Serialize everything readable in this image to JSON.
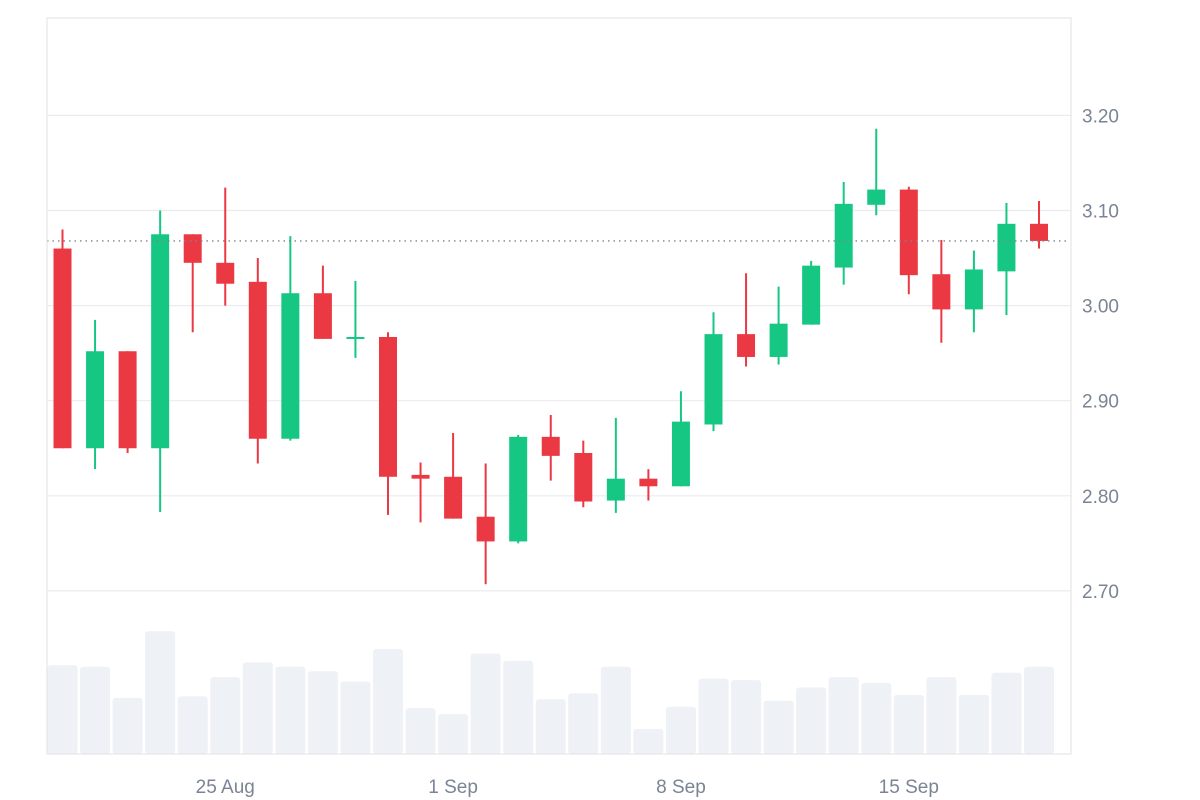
{
  "chart_data": {
    "type": "candlestick",
    "title": "",
    "xlabel": "",
    "ylabel": "",
    "ylim": [
      2.6,
      3.3
    ],
    "y_ticks": [
      "2.70",
      "2.80",
      "2.90",
      "3.00",
      "3.10",
      "3.20"
    ],
    "x_ticks": [
      {
        "label": "25 Aug",
        "date": "2025-08-25"
      },
      {
        "label": "1 Sep",
        "date": "2025-09-01"
      },
      {
        "label": "8 Sep",
        "date": "2025-09-08"
      },
      {
        "label": "15 Sep",
        "date": "2025-09-15"
      }
    ],
    "current_price": 3.068,
    "grid": true,
    "colors": {
      "up": "#16c784",
      "down": "#ea3943",
      "volume": "#eef1f5",
      "grid": "#e9ecf0",
      "tick_text": "#7b8494",
      "price_line": "#7b8494"
    },
    "candles": [
      {
        "date": "2025-08-20",
        "open": 3.06,
        "high": 3.08,
        "low": 2.85,
        "close": 2.85,
        "volume": 0.6
      },
      {
        "date": "2025-08-21",
        "open": 2.85,
        "high": 2.985,
        "low": 2.828,
        "close": 2.952,
        "volume": 0.59
      },
      {
        "date": "2025-08-22",
        "open": 2.952,
        "high": 2.952,
        "low": 2.845,
        "close": 2.85,
        "volume": 0.38
      },
      {
        "date": "2025-08-23",
        "open": 2.85,
        "high": 3.1,
        "low": 2.783,
        "close": 3.075,
        "volume": 0.83
      },
      {
        "date": "2025-08-24",
        "open": 3.075,
        "high": 3.075,
        "low": 2.972,
        "close": 3.045,
        "volume": 0.39
      },
      {
        "date": "2025-08-25",
        "open": 3.045,
        "high": 3.124,
        "low": 3.0,
        "close": 3.023,
        "volume": 0.52
      },
      {
        "date": "2025-08-26",
        "open": 3.025,
        "high": 3.05,
        "low": 2.834,
        "close": 2.86,
        "volume": 0.62
      },
      {
        "date": "2025-08-27",
        "open": 2.86,
        "high": 3.073,
        "low": 2.858,
        "close": 3.013,
        "volume": 0.59
      },
      {
        "date": "2025-08-28",
        "open": 3.013,
        "high": 3.042,
        "low": 2.965,
        "close": 2.965,
        "volume": 0.56
      },
      {
        "date": "2025-08-29",
        "open": 2.965,
        "high": 3.026,
        "low": 2.945,
        "close": 2.967,
        "volume": 0.49
      },
      {
        "date": "2025-08-30",
        "open": 2.967,
        "high": 2.972,
        "low": 2.78,
        "close": 2.82,
        "volume": 0.71
      },
      {
        "date": "2025-08-31",
        "open": 2.822,
        "high": 2.835,
        "low": 2.772,
        "close": 2.818,
        "volume": 0.31
      },
      {
        "date": "2025-09-01",
        "open": 2.82,
        "high": 2.866,
        "low": 2.776,
        "close": 2.776,
        "volume": 0.27
      },
      {
        "date": "2025-09-02",
        "open": 2.778,
        "high": 2.834,
        "low": 2.707,
        "close": 2.752,
        "volume": 0.68
      },
      {
        "date": "2025-09-03",
        "open": 2.752,
        "high": 2.864,
        "low": 2.75,
        "close": 2.862,
        "volume": 0.63
      },
      {
        "date": "2025-09-04",
        "open": 2.862,
        "high": 2.885,
        "low": 2.816,
        "close": 2.842,
        "volume": 0.37
      },
      {
        "date": "2025-09-05",
        "open": 2.845,
        "high": 2.858,
        "low": 2.788,
        "close": 2.794,
        "volume": 0.41
      },
      {
        "date": "2025-09-06",
        "open": 2.795,
        "high": 2.882,
        "low": 2.782,
        "close": 2.818,
        "volume": 0.59
      },
      {
        "date": "2025-09-07",
        "open": 2.818,
        "high": 2.828,
        "low": 2.795,
        "close": 2.81,
        "volume": 0.17
      },
      {
        "date": "2025-09-08",
        "open": 2.81,
        "high": 2.91,
        "low": 2.81,
        "close": 2.878,
        "volume": 0.32
      },
      {
        "date": "2025-09-09",
        "open": 2.875,
        "high": 2.993,
        "low": 2.868,
        "close": 2.97,
        "volume": 0.51
      },
      {
        "date": "2025-09-10",
        "open": 2.97,
        "high": 3.034,
        "low": 2.936,
        "close": 2.946,
        "volume": 0.5
      },
      {
        "date": "2025-09-11",
        "open": 2.946,
        "high": 3.02,
        "low": 2.938,
        "close": 2.981,
        "volume": 0.36
      },
      {
        "date": "2025-09-12",
        "open": 2.98,
        "high": 3.047,
        "low": 2.98,
        "close": 3.042,
        "volume": 0.45
      },
      {
        "date": "2025-09-13",
        "open": 3.04,
        "high": 3.13,
        "low": 3.022,
        "close": 3.107,
        "volume": 0.52
      },
      {
        "date": "2025-09-14",
        "open": 3.106,
        "high": 3.186,
        "low": 3.095,
        "close": 3.122,
        "volume": 0.48
      },
      {
        "date": "2025-09-15",
        "open": 3.122,
        "high": 3.125,
        "low": 3.012,
        "close": 3.032,
        "volume": 0.4
      },
      {
        "date": "2025-09-16",
        "open": 3.033,
        "high": 3.069,
        "low": 2.961,
        "close": 2.996,
        "volume": 0.52
      },
      {
        "date": "2025-09-17",
        "open": 2.996,
        "high": 3.058,
        "low": 2.972,
        "close": 3.038,
        "volume": 0.4
      },
      {
        "date": "2025-09-18",
        "open": 3.036,
        "high": 3.108,
        "low": 2.99,
        "close": 3.086,
        "volume": 0.55
      },
      {
        "date": "2025-09-19",
        "open": 3.086,
        "high": 3.11,
        "low": 3.06,
        "close": 3.068,
        "volume": 0.59
      }
    ]
  }
}
